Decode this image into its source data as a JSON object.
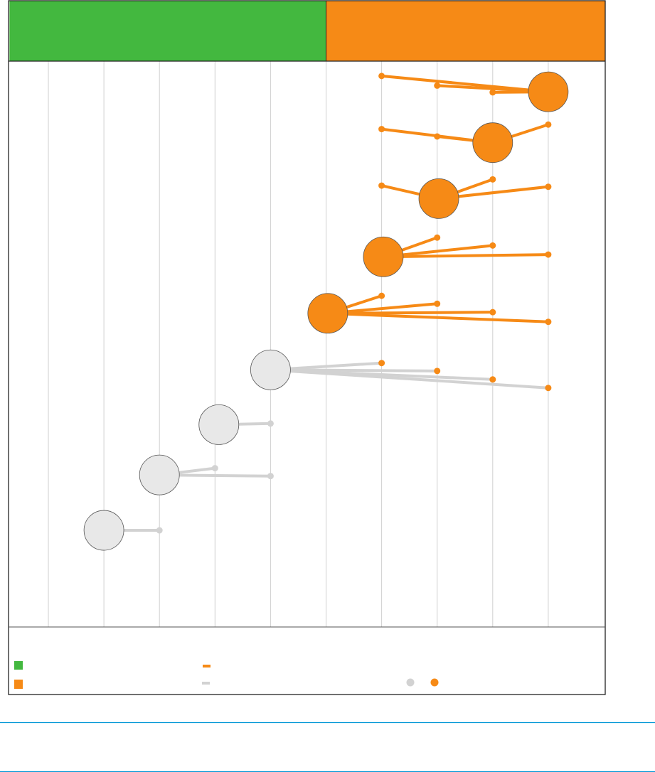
{
  "chart_data": {
    "type": "scatter",
    "title": "",
    "xlabel": "",
    "ylabel": "",
    "xlim": [
      -0.7,
      10.1
    ],
    "ylim": [
      0,
      100
    ],
    "grid": true,
    "gridlines_x": [
      0,
      1,
      2,
      3,
      4,
      5,
      6,
      7,
      8,
      9
    ],
    "bands": [
      {
        "name": "green-band",
        "from": -0.7,
        "to": 5,
        "color": "#43b83f"
      },
      {
        "name": "orange-band",
        "from": 5,
        "to": 10.1,
        "color": "#f68a16"
      }
    ],
    "colors": {
      "gray_circle": "#e8e8e8",
      "gray_line": "#d2d2d2",
      "orange": "#f68a16",
      "green": "#43b83f",
      "rule": "#0096d6"
    },
    "nodes": [
      {
        "x": 1,
        "y": 17.1,
        "group": "gray",
        "links": [
          {
            "x": 2,
            "y": 17.1
          }
        ]
      },
      {
        "x": 2,
        "y": 26.9,
        "group": "gray",
        "links": [
          {
            "x": 3,
            "y": 28.1
          },
          {
            "x": 4,
            "y": 26.7
          }
        ]
      },
      {
        "x": 3.07,
        "y": 35.8,
        "group": "gray",
        "links": [
          {
            "x": 4,
            "y": 36.0
          }
        ]
      },
      {
        "x": 4,
        "y": 45.5,
        "group": "gray",
        "links": [
          {
            "x": 6,
            "y": 46.7
          },
          {
            "x": 7,
            "y": 45.3
          },
          {
            "x": 8,
            "y": 43.8
          },
          {
            "x": 9,
            "y": 42.3
          }
        ]
      },
      {
        "x": 5.03,
        "y": 55.5,
        "group": "orange",
        "links": [
          {
            "x": 6,
            "y": 58.6
          },
          {
            "x": 7,
            "y": 57.2
          },
          {
            "x": 8,
            "y": 55.7
          },
          {
            "x": 9,
            "y": 54.0
          }
        ]
      },
      {
        "x": 6.03,
        "y": 65.5,
        "group": "orange",
        "links": [
          {
            "x": 7,
            "y": 68.9
          },
          {
            "x": 8,
            "y": 67.5
          },
          {
            "x": 9,
            "y": 65.9
          }
        ]
      },
      {
        "x": 7.03,
        "y": 75.8,
        "group": "orange",
        "links": [
          {
            "x": 6,
            "y": 78.1
          },
          {
            "x": 8,
            "y": 79.2
          },
          {
            "x": 9,
            "y": 77.9
          }
        ]
      },
      {
        "x": 8,
        "y": 85.7,
        "group": "orange",
        "links": [
          {
            "x": 6,
            "y": 88.1
          },
          {
            "x": 7,
            "y": 86.8
          },
          {
            "x": 9,
            "y": 88.9
          }
        ]
      },
      {
        "x": 9,
        "y": 94.7,
        "group": "orange",
        "links": [
          {
            "x": 6,
            "y": 97.5
          },
          {
            "x": 7,
            "y": 95.8
          },
          {
            "x": 8,
            "y": 94.6
          }
        ]
      }
    ],
    "legend": "bottom"
  }
}
